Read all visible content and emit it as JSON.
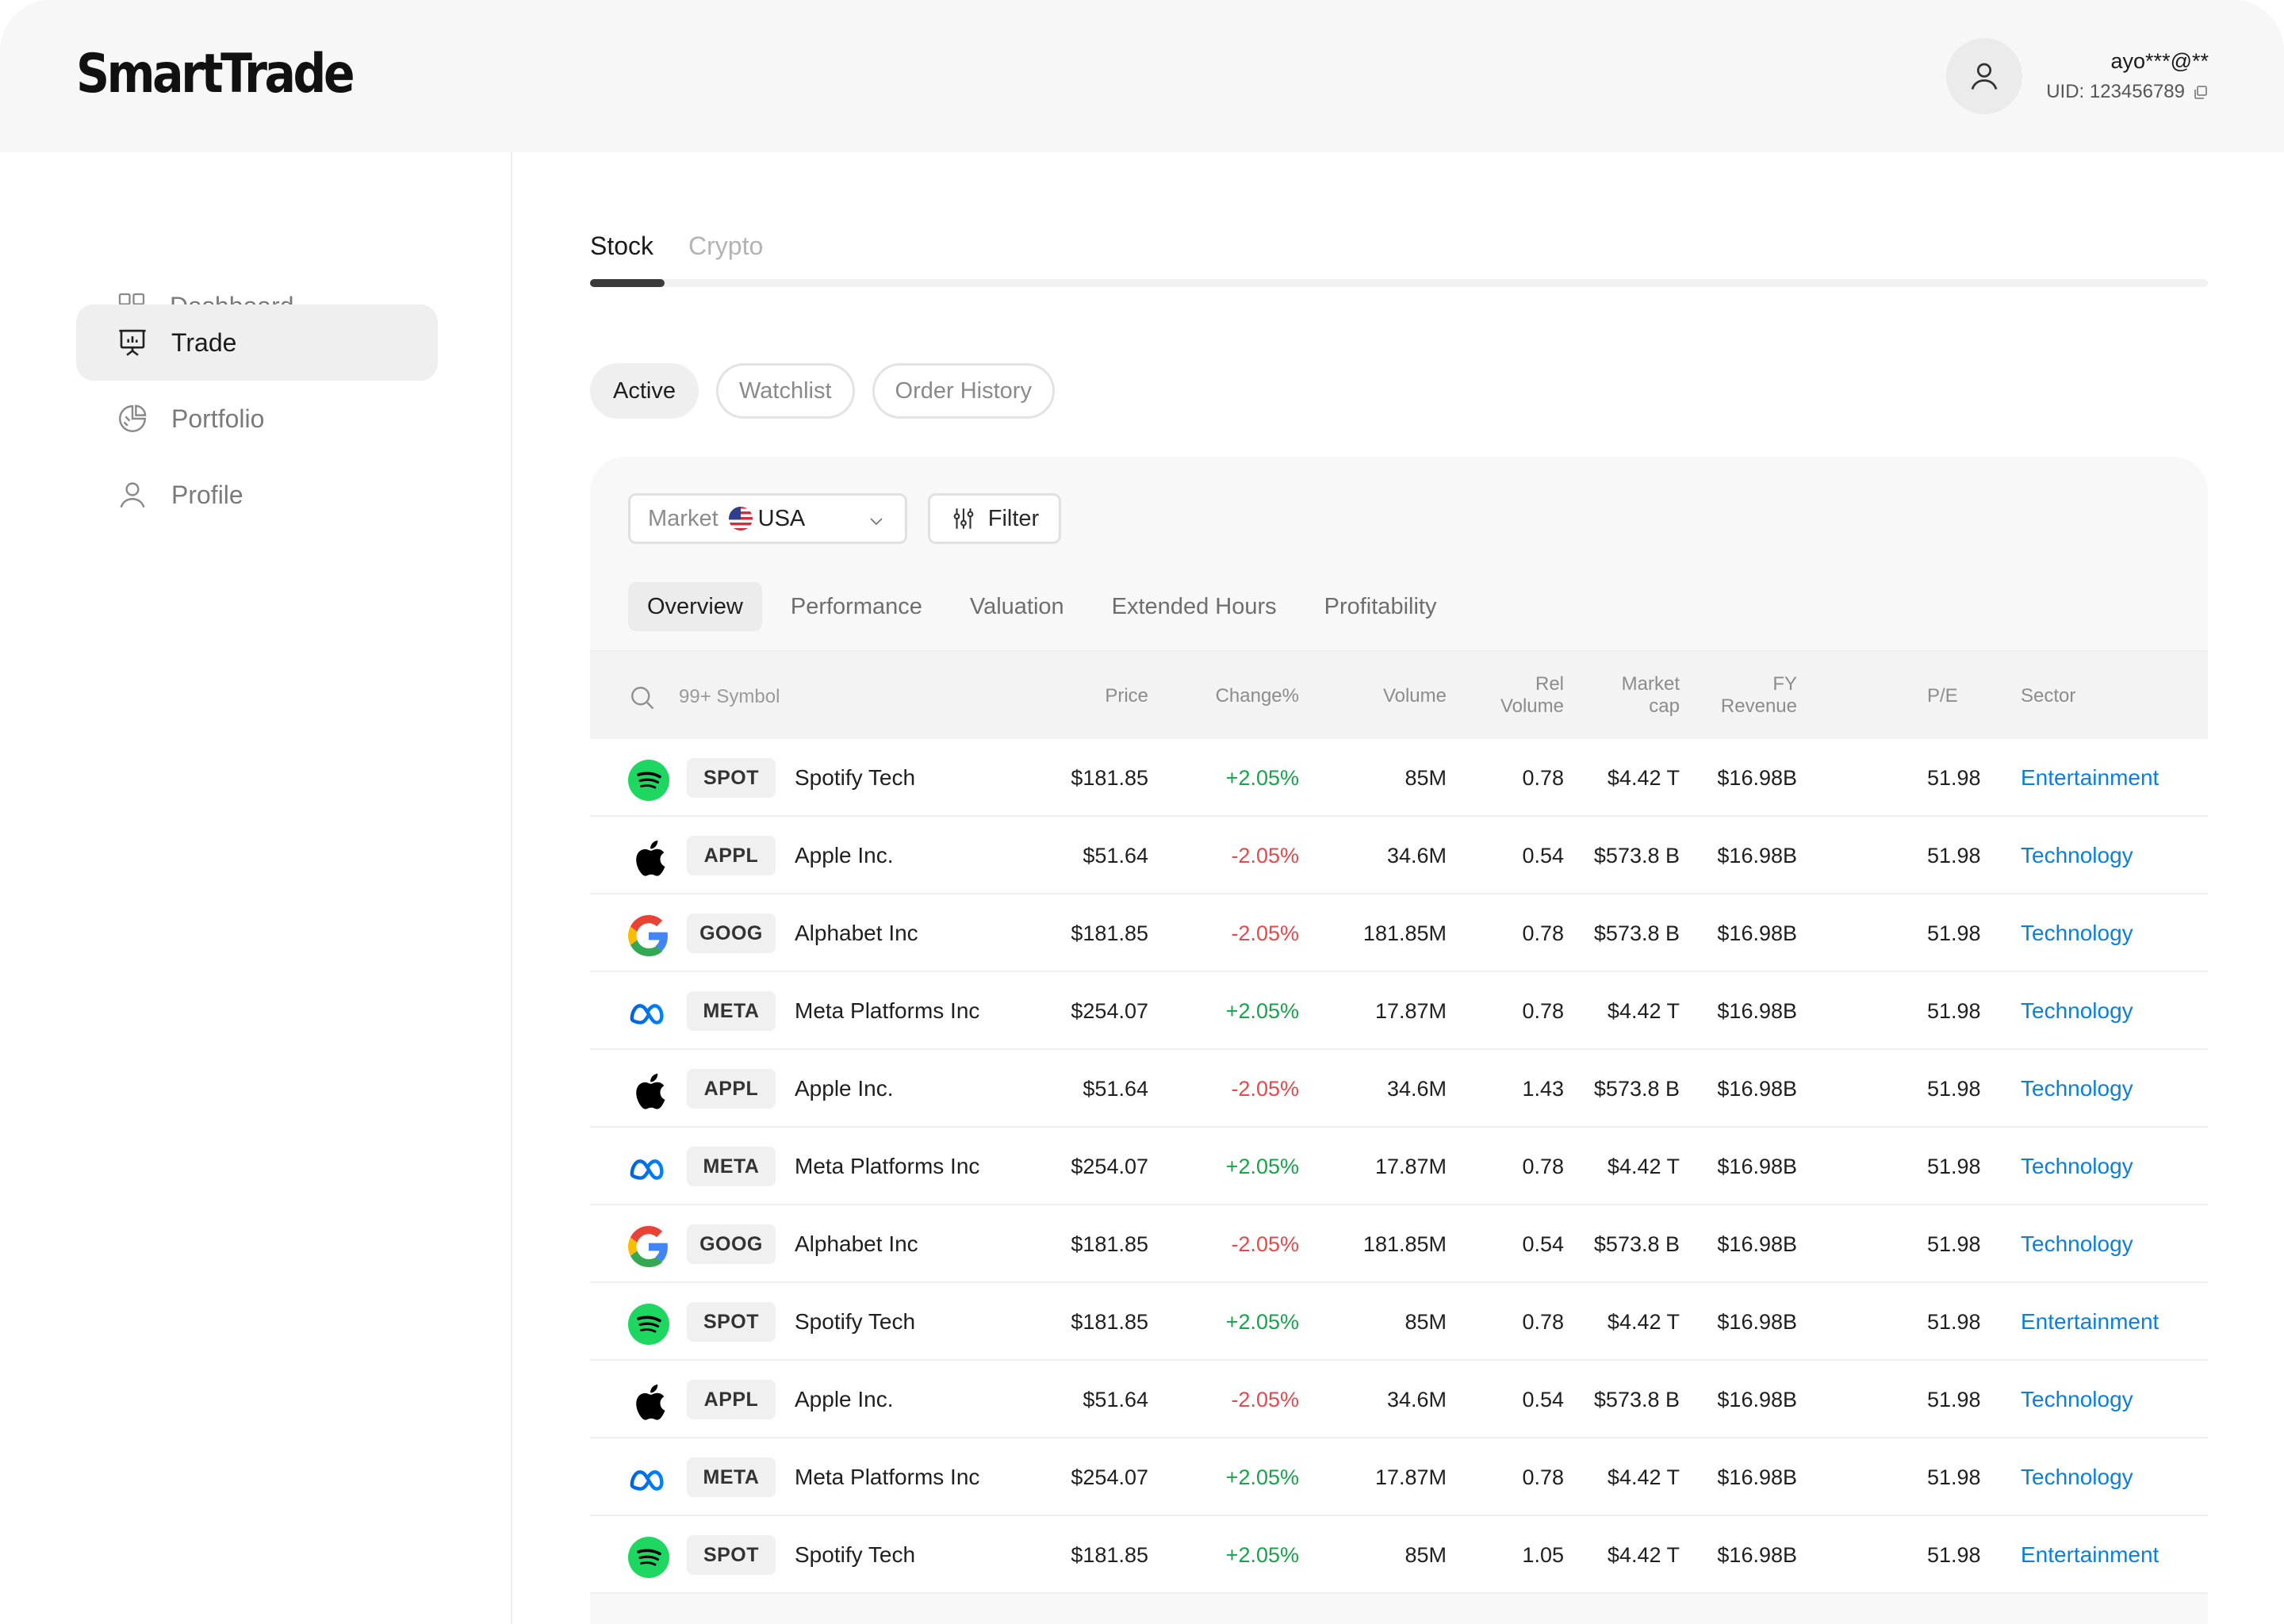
{
  "app": {
    "logo": "SmartTrade"
  },
  "user": {
    "name": "ayo***@**",
    "uid": "UID: 123456789"
  },
  "sidebar": {
    "items": [
      {
        "label": "Dashboard",
        "icon": "grid-icon",
        "active": false
      },
      {
        "label": "Trade",
        "icon": "presentation-chart-icon",
        "active": true
      },
      {
        "label": "Portfolio",
        "icon": "pie-chart-icon",
        "active": false
      },
      {
        "label": "Profile",
        "icon": "user-icon",
        "active": false
      }
    ]
  },
  "tabs": {
    "stock": "Stock",
    "crypto": "Crypto"
  },
  "pills": {
    "active": "Active",
    "watchlist": "Watchlist",
    "order_history": "Order History"
  },
  "market": {
    "label": "Market",
    "value": "USA",
    "flag": "us-flag-icon"
  },
  "filter": {
    "label": "Filter"
  },
  "subtabs": {
    "overview": "Overview",
    "performance": "Performance",
    "valuation": "Valuation",
    "extended_hours": "Extended Hours",
    "profitability": "Profitability"
  },
  "search": {
    "placeholder": "99+ Symbol"
  },
  "columns": {
    "price": "Price",
    "change": "Change%",
    "volume": "Volume",
    "rel_volume_1": "Rel",
    "rel_volume_2": "Volume",
    "market_cap_1": "Market",
    "market_cap_2": "cap",
    "fy_revenue_1": "FY",
    "fy_revenue_2": "Revenue",
    "pe": "P/E",
    "sector": "Sector"
  },
  "rows": [
    {
      "logo": "spotify-icon",
      "ticker": "SPOT",
      "name": "Spotify Tech",
      "price": "$181.85",
      "change": "+2.05%",
      "volume": "85M",
      "rel_volume": "0.78",
      "market_cap": "$4.42 T",
      "fy_revenue": "$16.98B",
      "pe": "51.98",
      "sector": "Entertainment"
    },
    {
      "logo": "apple-icon",
      "ticker": "APPL",
      "name": "Apple Inc.",
      "price": "$51.64",
      "change": "-2.05%",
      "volume": "34.6M",
      "rel_volume": "0.54",
      "market_cap": "$573.8 B",
      "fy_revenue": "$16.98B",
      "pe": "51.98",
      "sector": "Technology"
    },
    {
      "logo": "google-icon",
      "ticker": "GOOG",
      "name": "Alphabet Inc",
      "price": "$181.85",
      "change": "-2.05%",
      "volume": "181.85M",
      "rel_volume": "0.78",
      "market_cap": "$573.8 B",
      "fy_revenue": "$16.98B",
      "pe": "51.98",
      "sector": "Technology"
    },
    {
      "logo": "meta-icon",
      "ticker": "META",
      "name": "Meta Platforms Inc",
      "price": "$254.07",
      "change": "+2.05%",
      "volume": "17.87M",
      "rel_volume": "0.78",
      "market_cap": "$4.42 T",
      "fy_revenue": "$16.98B",
      "pe": "51.98",
      "sector": "Technology"
    },
    {
      "logo": "apple-icon",
      "ticker": "APPL",
      "name": "Apple Inc.",
      "price": "$51.64",
      "change": "-2.05%",
      "volume": "34.6M",
      "rel_volume": "1.43",
      "market_cap": "$573.8 B",
      "fy_revenue": "$16.98B",
      "pe": "51.98",
      "sector": "Technology"
    },
    {
      "logo": "meta-icon",
      "ticker": "META",
      "name": "Meta Platforms Inc",
      "price": "$254.07",
      "change": "+2.05%",
      "volume": "17.87M",
      "rel_volume": "0.78",
      "market_cap": "$4.42 T",
      "fy_revenue": "$16.98B",
      "pe": "51.98",
      "sector": "Technology"
    },
    {
      "logo": "google-icon",
      "ticker": "GOOG",
      "name": "Alphabet Inc",
      "price": "$181.85",
      "change": "-2.05%",
      "volume": "181.85M",
      "rel_volume": "0.54",
      "market_cap": "$573.8 B",
      "fy_revenue": "$16.98B",
      "pe": "51.98",
      "sector": "Technology"
    },
    {
      "logo": "spotify-icon",
      "ticker": "SPOT",
      "name": "Spotify Tech",
      "price": "$181.85",
      "change": "+2.05%",
      "volume": "85M",
      "rel_volume": "0.78",
      "market_cap": "$4.42 T",
      "fy_revenue": "$16.98B",
      "pe": "51.98",
      "sector": "Entertainment"
    },
    {
      "logo": "apple-icon",
      "ticker": "APPL",
      "name": "Apple Inc.",
      "price": "$51.64",
      "change": "-2.05%",
      "volume": "34.6M",
      "rel_volume": "0.54",
      "market_cap": "$573.8 B",
      "fy_revenue": "$16.98B",
      "pe": "51.98",
      "sector": "Technology"
    },
    {
      "logo": "meta-icon",
      "ticker": "META",
      "name": "Meta Platforms Inc",
      "price": "$254.07",
      "change": "+2.05%",
      "volume": "17.87M",
      "rel_volume": "0.78",
      "market_cap": "$4.42 T",
      "fy_revenue": "$16.98B",
      "pe": "51.98",
      "sector": "Technology"
    },
    {
      "logo": "spotify-icon",
      "ticker": "SPOT",
      "name": "Spotify Tech",
      "price": "$181.85",
      "change": "+2.05%",
      "volume": "85M",
      "rel_volume": "1.05",
      "market_cap": "$4.42 T",
      "fy_revenue": "$16.98B",
      "pe": "51.98",
      "sector": "Entertainment"
    }
  ],
  "colors": {
    "positive": "#17a34a",
    "negative": "#e5484d",
    "sector_link": "#0b7fe0"
  }
}
